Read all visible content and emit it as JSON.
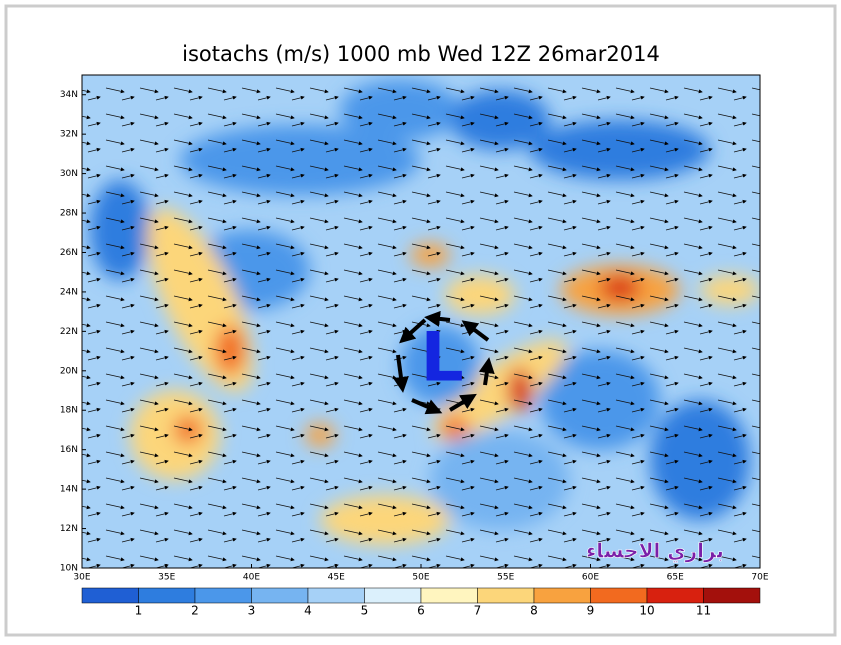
{
  "title": "isotachs (m/s) 1000 mb Wed 12Z 26mar2014",
  "lat_labels": [
    "34N",
    "32N",
    "30N",
    "28N",
    "26N",
    "24N",
    "22N",
    "20N",
    "18N",
    "16N",
    "14N",
    "12N",
    "10N"
  ],
  "lon_labels": [
    "30E",
    "35E",
    "40E",
    "45E",
    "50E",
    "55E",
    "60E",
    "65E",
    "70E"
  ],
  "colorbar": {
    "colors": [
      "#1f5fd4",
      "#2e7ddf",
      "#4b97ea",
      "#76b4f1",
      "#a6d1f7",
      "#dbf0fc",
      "#fff5bf",
      "#fcd67a",
      "#f8a23f",
      "#f26a1f",
      "#d8210f",
      "#a3100c"
    ],
    "labels": [
      "1",
      "2",
      "3",
      "4",
      "5",
      "6",
      "7",
      "8",
      "9",
      "10",
      "11"
    ]
  },
  "low_marker": "L",
  "watermark": "براري الاحساء"
}
